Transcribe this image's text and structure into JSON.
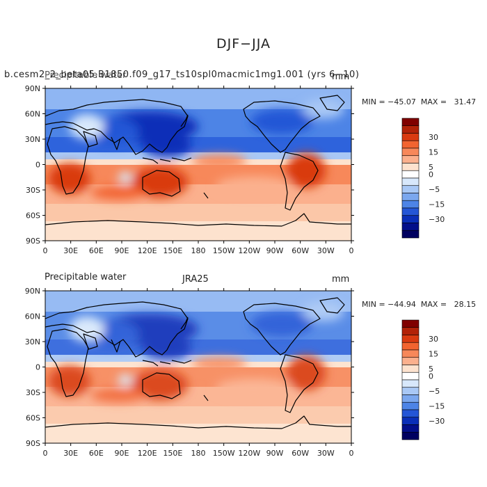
{
  "figure": {
    "title": "DJF−JJA"
  },
  "panels": [
    {
      "overlap_left": "b.cesm2_2_beta05.B1850.f09_g17_ts10spl0macmic1mg1.001 (yrs 6−10)",
      "overlap_left_under": "Precipitable water",
      "units": "mm",
      "stats": "MIN = −45.07  MAX =   31.47"
    },
    {
      "left": "Precipitable water",
      "center": "JRA25",
      "units": "mm",
      "stats": "MIN = −44.94  MAX =   28.15"
    }
  ],
  "axes": {
    "y_ticks": [
      "90N",
      "60N",
      "30N",
      "0",
      "30S",
      "60S",
      "90S"
    ],
    "x_ticks": [
      "0",
      "30E",
      "60E",
      "90E",
      "120E",
      "150E",
      "180",
      "150W",
      "120W",
      "90W",
      "60W",
      "30W",
      "0"
    ]
  },
  "colorbar": {
    "labels": [
      "30",
      "15",
      "5",
      "0",
      "−5",
      "−15",
      "−30"
    ],
    "colors": [
      "#800000",
      "#b22208",
      "#d93a10",
      "#f26430",
      "#f7885a",
      "#fbb08d",
      "#fde2ce",
      "#ffffff",
      "#d8e8fb",
      "#a9c8f5",
      "#7ba7ee",
      "#4d84e6",
      "#2456d6",
      "#0a2fb8",
      "#030f8a",
      "#000060"
    ]
  },
  "chart_data": [
    {
      "type": "heatmap",
      "title": "DJF−JJA",
      "subtitle": "b.cesm2_2_beta05.B1850.f09_g17_ts10spl0macmic1mg1.001 (yrs 6−10) — Precipitable water",
      "units": "mm",
      "x_axis": [
        "0",
        "30E",
        "60E",
        "90E",
        "120E",
        "150E",
        "180",
        "150W",
        "120W",
        "90W",
        "60W",
        "30W",
        "0"
      ],
      "y_axis": [
        "90N",
        "60N",
        "30N",
        "0",
        "30S",
        "60S",
        "90S"
      ],
      "min": -45.07,
      "max": 31.47,
      "contour_levels": [
        -30,
        -15,
        -5,
        0,
        5,
        15,
        30
      ]
    },
    {
      "type": "heatmap",
      "title": "DJF−JJA",
      "subtitle": "JRA25 — Precipitable water",
      "units": "mm",
      "x_axis": [
        "0",
        "30E",
        "60E",
        "90E",
        "120E",
        "150E",
        "180",
        "150W",
        "120W",
        "90W",
        "60W",
        "30W",
        "0"
      ],
      "y_axis": [
        "90N",
        "60N",
        "30N",
        "0",
        "30S",
        "60S",
        "90S"
      ],
      "min": -44.94,
      "max": 28.15,
      "contour_levels": [
        -30,
        -15,
        -5,
        0,
        5,
        15,
        30
      ]
    }
  ]
}
